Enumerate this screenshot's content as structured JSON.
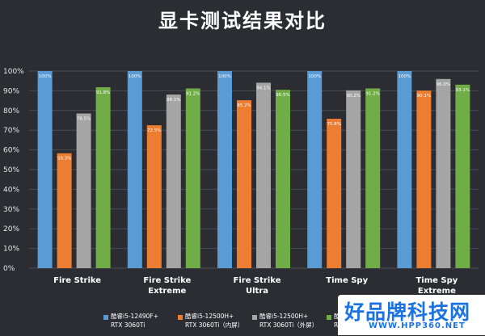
{
  "chart_data": {
    "type": "bar",
    "title": "显卡测试结果对比",
    "categories": [
      [
        "Fire Strike"
      ],
      [
        "Fire Strike",
        "Extreme"
      ],
      [
        "Fire Strike",
        "Ultra"
      ],
      [
        "Time Spy"
      ],
      [
        "Time Spy",
        "Extreme"
      ]
    ],
    "yticks": [
      "0%",
      "10%",
      "20%",
      "30%",
      "40%",
      "50%",
      "60%",
      "70%",
      "80%",
      "90%",
      "100%"
    ],
    "ylim": [
      0,
      100
    ],
    "grid": true,
    "legend_position": "bottom",
    "series": [
      {
        "name": "酷睿i5-12490F+ RTX 3060Ti",
        "legend_lines": [
          "酷睿i5-12490F+",
          "RTX 3060Ti"
        ],
        "color": "#5b9bd5",
        "values": [
          100,
          100,
          100,
          100,
          100
        ],
        "labels": [
          "100%",
          "100%",
          "100%",
          "100%",
          "100%"
        ]
      },
      {
        "name": "酷睿i5-12500H+ RTX 3060Ti（内屏）",
        "legend_lines": [
          "酷睿i5-12500H+",
          "RTX 3060Ti（内屏）"
        ],
        "color": "#ed7d31",
        "values": [
          58.3,
          72.5,
          85.2,
          75.8,
          90.1
        ],
        "labels": [
          "58.3%",
          "72.5%",
          "85.2%",
          "75.8%",
          "90.1%"
        ]
      },
      {
        "name": "酷睿i5-12500H+ RTX 3060Ti（外屏）",
        "legend_lines": [
          "酷睿i5-12500H+",
          "RTX 3060Ti（外屏）"
        ],
        "color": "#a5a5a5",
        "values": [
          78.5,
          88.1,
          94.1,
          90.2,
          96.0
        ],
        "labels": [
          "78.5%",
          "88.1%",
          "94.1%",
          "90.2%",
          "96.0%"
        ]
      },
      {
        "name": "酷睿i7",
        "legend_lines": [
          "酷睿i7",
          "RTX 3"
        ],
        "color": "#70ad47",
        "values": [
          91.8,
          91.2,
          90.5,
          91.2,
          93.1
        ],
        "labels": [
          "91.8%",
          "91.2%",
          "90.5%",
          "91.2%",
          "93.1%"
        ]
      }
    ]
  },
  "watermark": {
    "main": "好品牌科技网",
    "url": "WWW.HPP360.NET"
  }
}
